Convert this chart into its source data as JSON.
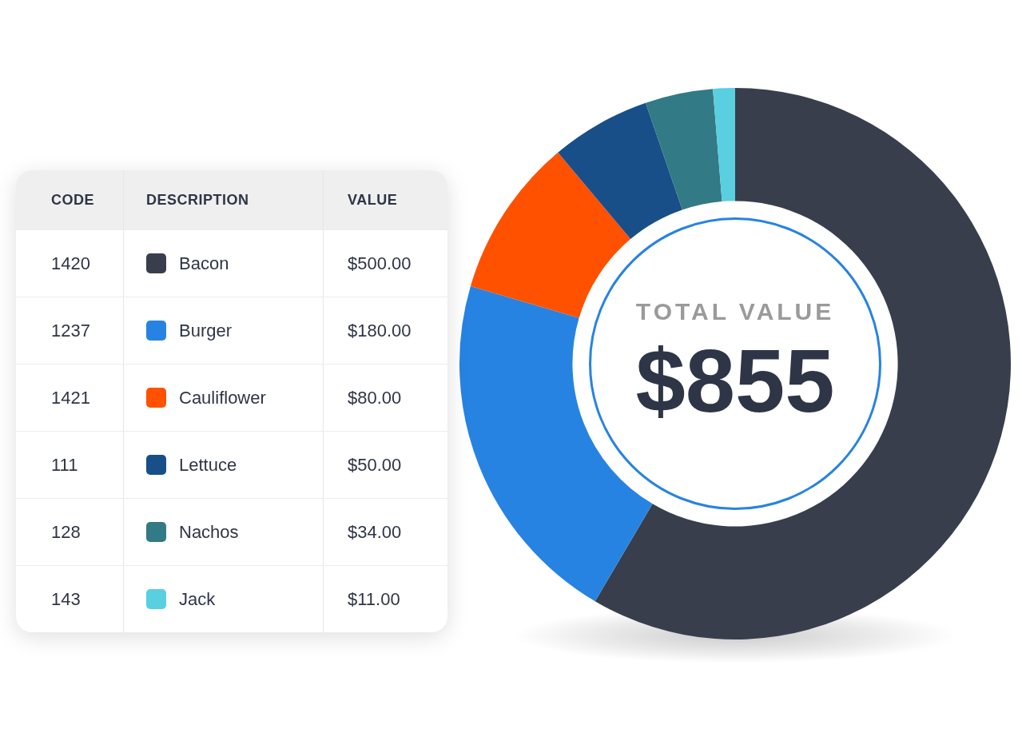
{
  "chart_data": {
    "type": "donut",
    "title": "TOTAL VALUE",
    "totals": [
      "$855"
    ],
    "categories": [
      "Bacon",
      "Burger",
      "Cauliflower",
      "Lettuce",
      "Nachos",
      "Jack"
    ],
    "values": [
      500,
      180,
      80,
      50,
      34,
      11
    ],
    "colors": [
      "#383e4c",
      "#2783e2",
      "#ff5100",
      "#184f88",
      "#327a85",
      "#59cfe0"
    ],
    "value_labels": [
      "$500.00",
      "$180.00",
      "$80.00",
      "$50.00",
      "$34.00",
      "$11.00"
    ],
    "annotations": [
      "CODE",
      "DESCRIPTION",
      "VALUE",
      "1420",
      "1237",
      "1421",
      "111",
      "128",
      "143"
    ],
    "legend": "left"
  }
}
